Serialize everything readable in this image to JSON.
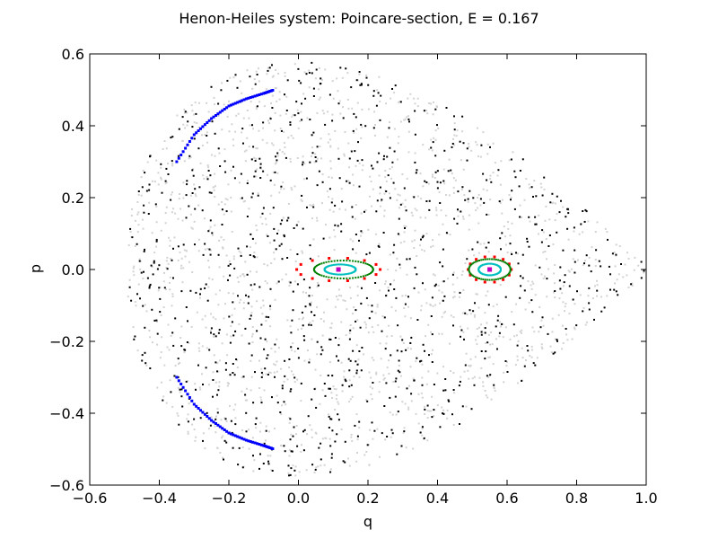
{
  "chart_data": {
    "type": "scatter",
    "title": "Henon-Heiles system: Poincare-section, E = 0.167",
    "xlabel": "q",
    "ylabel": "p",
    "xlim": [
      -0.6,
      1.0
    ],
    "ylim": [
      -0.6,
      0.6
    ],
    "grid": false,
    "x_ticks": [
      -0.6,
      -0.4,
      -0.2,
      0.0,
      0.2,
      0.4,
      0.6,
      0.8,
      1.0
    ],
    "x_tick_labels": [
      "−0.6",
      "−0.4",
      "−0.2",
      "0.0",
      "0.2",
      "0.4",
      "0.6",
      "0.8",
      "1.0"
    ],
    "y_ticks": [
      -0.6,
      -0.4,
      -0.2,
      0.0,
      0.2,
      0.4,
      0.6
    ],
    "y_tick_labels": [
      "−0.6",
      "−0.4",
      "−0.2",
      "0.0",
      "0.2",
      "0.4",
      "0.6"
    ],
    "series": [
      {
        "color": "#d3d3d3",
        "marker": "dot",
        "kind": "chaotic-sea",
        "approx_count": 1400,
        "region": "bounded energy surface E = 0.167"
      },
      {
        "color": "#000000",
        "marker": "dot",
        "kind": "chaotic-sea",
        "approx_count": 900,
        "region": "bounded energy surface E = 0.167"
      },
      {
        "color": "#0000ff",
        "marker": "dot",
        "kind": "arc",
        "arcs": [
          {
            "x": [
              -0.35,
              -0.3,
              -0.25,
              -0.2,
              -0.15,
              -0.1,
              -0.07
            ],
            "y": [
              0.3,
              0.375,
              0.42,
              0.455,
              0.475,
              0.49,
              0.5
            ]
          },
          {
            "x": [
              -0.35,
              -0.3,
              -0.25,
              -0.2,
              -0.15,
              -0.1,
              -0.07
            ],
            "y": [
              -0.3,
              -0.375,
              -0.42,
              -0.455,
              -0.475,
              -0.49,
              -0.5
            ]
          }
        ]
      },
      {
        "color": "#ff0000",
        "marker": "dot",
        "kind": "island-chain",
        "islands": [
          {
            "center": [
              0.115,
              0.0
            ],
            "rx": 0.12,
            "ry": 0.032,
            "count": 14
          },
          {
            "center": [
              0.55,
              0.0
            ],
            "rx": 0.062,
            "ry": 0.036,
            "count": 14
          }
        ]
      },
      {
        "color": "#008000",
        "marker": "dot",
        "kind": "ellipse",
        "ellipses": [
          {
            "center": [
              0.13,
              0.0
            ],
            "rx": 0.085,
            "ry": 0.025
          },
          {
            "center": [
              0.55,
              0.0
            ],
            "rx": 0.06,
            "ry": 0.029
          }
        ]
      },
      {
        "color": "#00bfbf",
        "marker": "dot",
        "kind": "ellipse",
        "ellipses": [
          {
            "center": [
              0.12,
              0.0
            ],
            "rx": 0.045,
            "ry": 0.014
          },
          {
            "center": [
              0.55,
              0.0
            ],
            "rx": 0.032,
            "ry": 0.016
          }
        ]
      },
      {
        "color": "#bf00bf",
        "marker": "dot",
        "kind": "fixed-point",
        "points": [
          {
            "x": 0.115,
            "y": 0.0
          },
          {
            "x": 0.55,
            "y": 0.0
          }
        ]
      }
    ]
  }
}
